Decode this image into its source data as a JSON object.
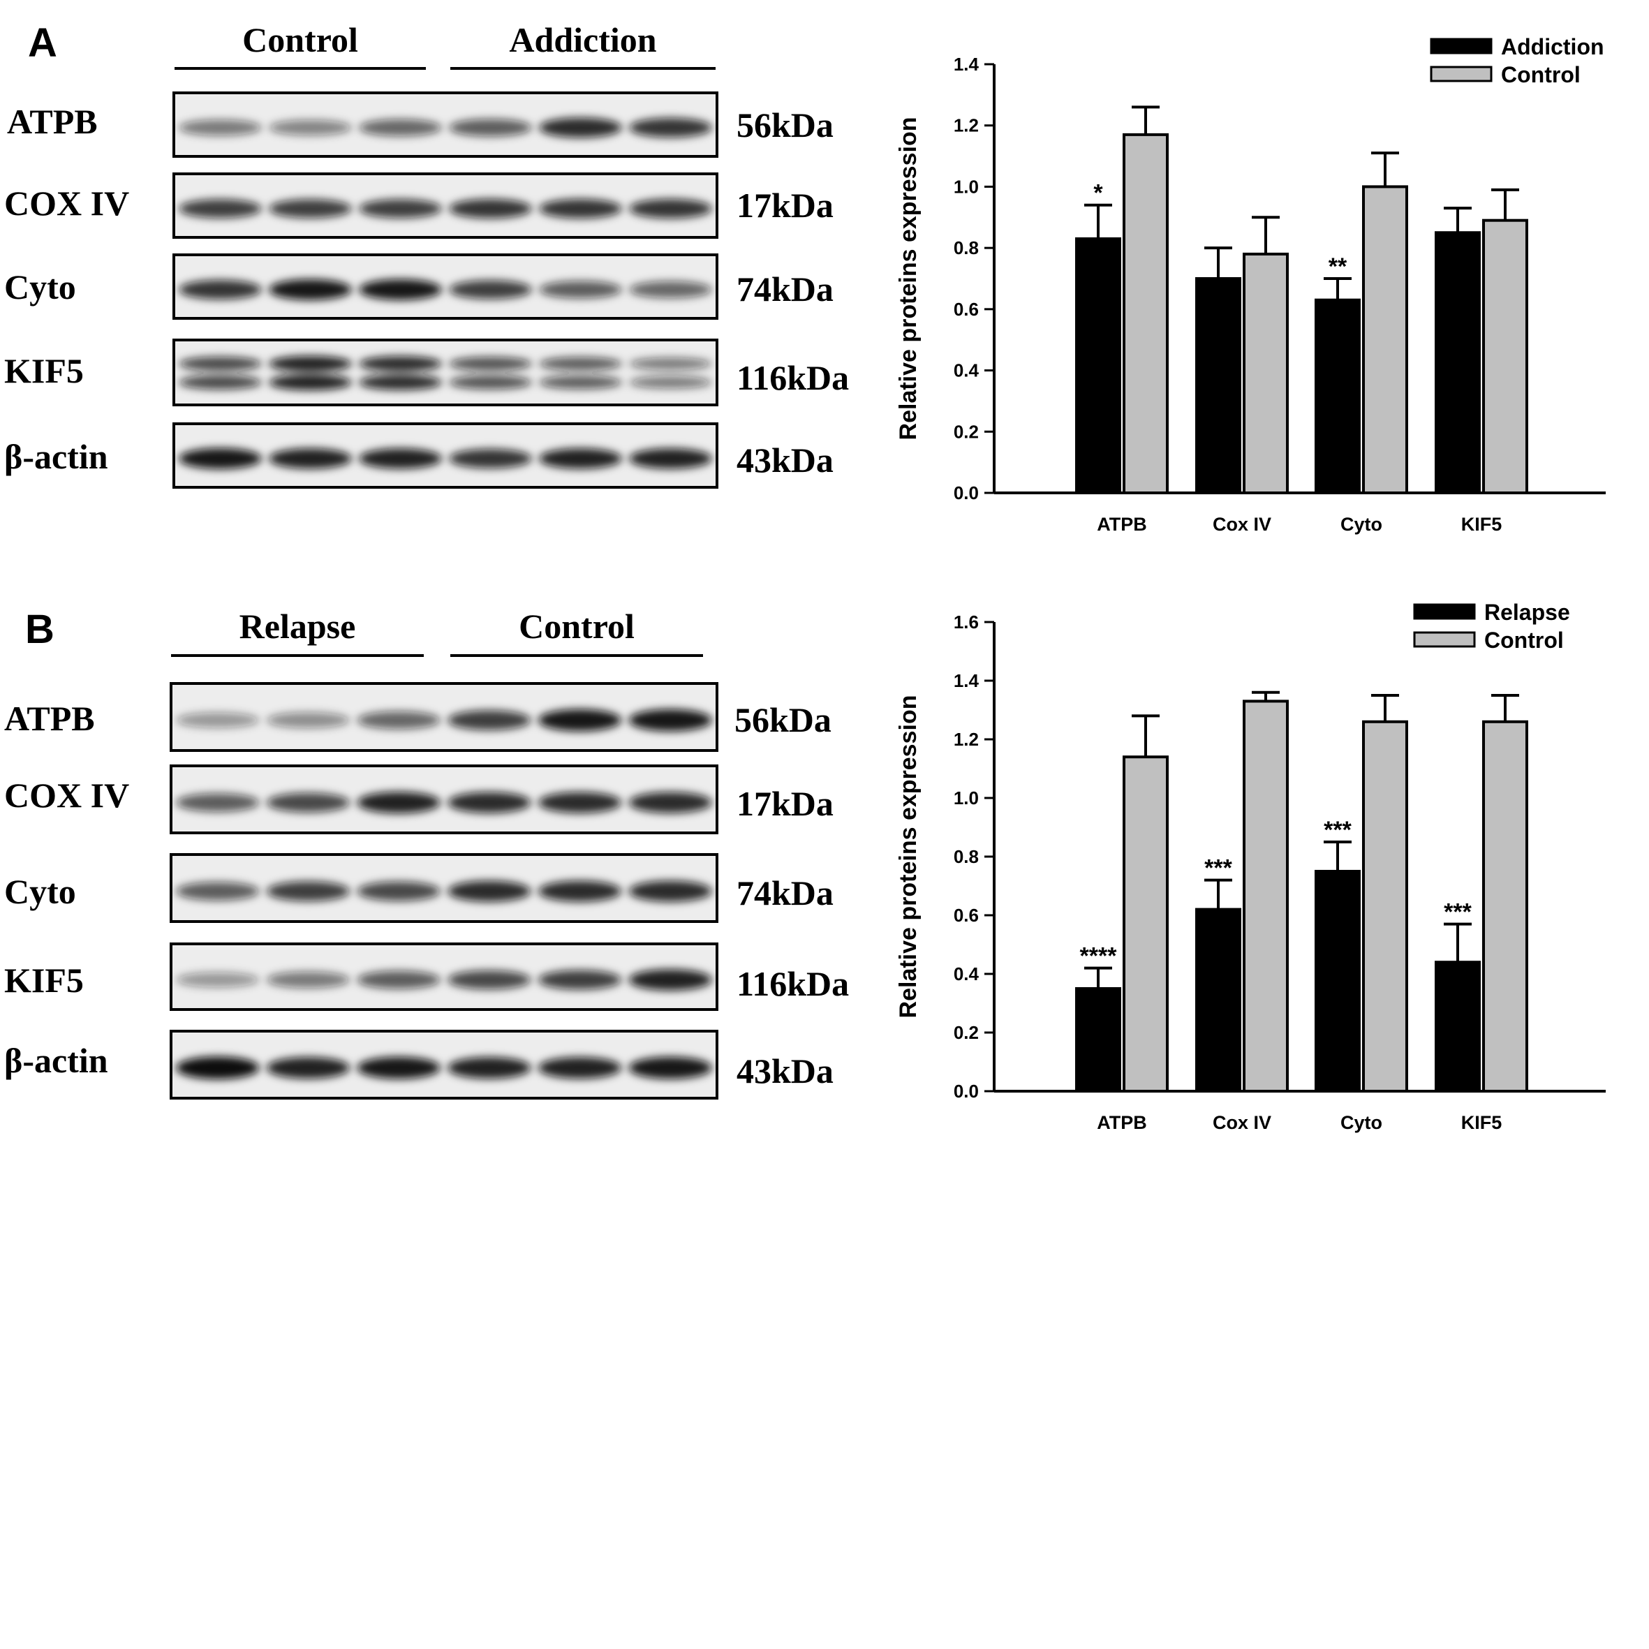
{
  "panels": [
    {
      "letter": "A",
      "groups": [
        "Control",
        "Addiction"
      ],
      "rows": [
        {
          "protein": "ATPB",
          "kda": "56kDa",
          "bands": [
            0.45,
            0.4,
            0.55,
            0.6,
            0.85,
            0.8
          ],
          "double": false
        },
        {
          "protein": "COX IV",
          "kda": "17kDa",
          "bands": [
            0.75,
            0.75,
            0.75,
            0.8,
            0.8,
            0.8
          ],
          "double": false
        },
        {
          "protein": "Cyto",
          "kda": "74kDa",
          "bands": [
            0.8,
            0.95,
            0.95,
            0.75,
            0.6,
            0.55
          ],
          "double": false
        },
        {
          "protein": "KIF5",
          "kda": "116kDa",
          "bands": [
            0.7,
            0.9,
            0.85,
            0.65,
            0.6,
            0.45
          ],
          "double": true
        },
        {
          "protein": "β-actin",
          "kda": "43kDa",
          "bands": [
            0.95,
            0.9,
            0.9,
            0.8,
            0.9,
            0.9
          ],
          "double": false
        }
      ]
    },
    {
      "letter": "B",
      "groups": [
        "Relapse",
        "Control"
      ],
      "rows": [
        {
          "protein": "ATPB",
          "kda": "56kDa",
          "bands": [
            0.3,
            0.35,
            0.55,
            0.75,
            0.95,
            0.95
          ],
          "double": false
        },
        {
          "protein": "COX IV",
          "kda": "17kDa",
          "bands": [
            0.6,
            0.7,
            0.9,
            0.85,
            0.85,
            0.85
          ],
          "double": false
        },
        {
          "protein": "Cyto",
          "kda": "74kDa",
          "bands": [
            0.6,
            0.75,
            0.7,
            0.85,
            0.85,
            0.85
          ],
          "double": false
        },
        {
          "protein": "KIF5",
          "kda": "116kDa",
          "bands": [
            0.3,
            0.45,
            0.6,
            0.7,
            0.75,
            0.9
          ],
          "double": false
        },
        {
          "protein": "β-actin",
          "kda": "43kDa",
          "bands": [
            1.0,
            0.9,
            0.95,
            0.9,
            0.9,
            0.95
          ],
          "double": false
        }
      ]
    }
  ],
  "chart_data": [
    {
      "type": "bar",
      "title": "",
      "xlabel": "",
      "ylabel": "Relative proteins expression",
      "ylim": [
        0,
        1.4
      ],
      "yticks": [
        "0.0",
        "0.2",
        "0.4",
        "0.6",
        "0.8",
        "1.0",
        "1.2",
        "1.4"
      ],
      "categories": [
        "ATPB",
        "Cox IV",
        "Cyto",
        "KIF5"
      ],
      "series": [
        {
          "name": "Addiction",
          "color": "#000000",
          "values": [
            0.83,
            0.7,
            0.63,
            0.85
          ],
          "errors": [
            0.11,
            0.1,
            0.07,
            0.08
          ]
        },
        {
          "name": "Control",
          "color": "#c0c0c0",
          "values": [
            1.17,
            0.78,
            1.0,
            0.89
          ],
          "errors": [
            0.09,
            0.12,
            0.11,
            0.1
          ]
        }
      ],
      "significance": [
        "*",
        "",
        "**",
        ""
      ],
      "legend_position": "top-right",
      "grid": false
    },
    {
      "type": "bar",
      "title": "",
      "xlabel": "",
      "ylabel": "Relative proteins expression",
      "ylim": [
        0,
        1.6
      ],
      "yticks": [
        "0.0",
        "0.2",
        "0.4",
        "0.6",
        "0.8",
        "1.0",
        "1.2",
        "1.4",
        "1.6"
      ],
      "categories": [
        "ATPB",
        "Cox IV",
        "Cyto",
        "KIF5"
      ],
      "series": [
        {
          "name": "Relapse",
          "color": "#000000",
          "values": [
            0.35,
            0.62,
            0.75,
            0.44
          ],
          "errors": [
            0.07,
            0.1,
            0.1,
            0.13
          ]
        },
        {
          "name": "Control",
          "color": "#c0c0c0",
          "values": [
            1.14,
            1.33,
            1.26,
            1.26
          ],
          "errors": [
            0.14,
            0.03,
            0.09,
            0.09
          ]
        }
      ],
      "significance": [
        "****",
        "***",
        "***",
        "***"
      ],
      "legend_position": "top-right",
      "grid": false
    }
  ]
}
